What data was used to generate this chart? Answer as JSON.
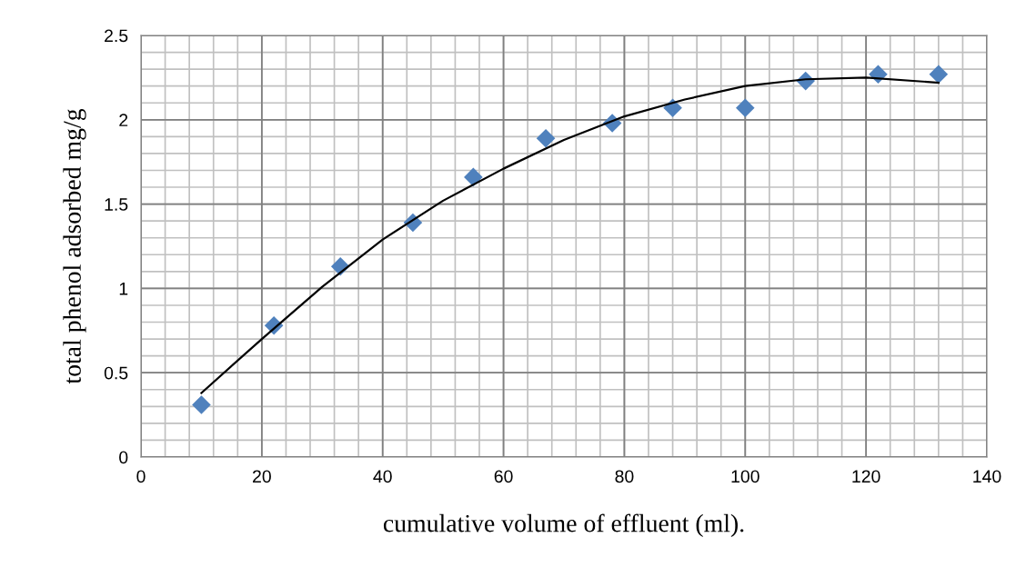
{
  "chart_data": {
    "type": "scatter",
    "xlabel": "cumulative volume of effluent (ml).",
    "ylabel": "total phenol adsorbed mg/g",
    "series": [
      {
        "color": "#4f81bd",
        "marker": "diamond",
        "x": [
          10,
          22,
          33,
          45,
          55,
          67,
          78,
          88,
          100,
          110,
          122,
          132
        ],
        "values": [
          0.31,
          0.78,
          1.13,
          1.39,
          1.66,
          1.89,
          1.98,
          2.07,
          2.07,
          2.23,
          2.27,
          2.27
        ]
      },
      {
        "type": "line",
        "color": "#000000",
        "marker": "none",
        "x": [
          10,
          20,
          30,
          40,
          50,
          60,
          70,
          80,
          90,
          100,
          110,
          120,
          132
        ],
        "values": [
          0.38,
          0.7,
          1.01,
          1.29,
          1.52,
          1.71,
          1.88,
          2.02,
          2.12,
          2.2,
          2.24,
          2.25,
          2.22
        ]
      }
    ],
    "xlim": [
      0,
      140
    ],
    "xticks": [
      0,
      20,
      40,
      60,
      80,
      100,
      120,
      140
    ],
    "ylim": [
      0,
      2.5
    ],
    "yticks": [
      0,
      0.5,
      1,
      1.5,
      2,
      2.5
    ],
    "grid": true,
    "legend": false
  }
}
